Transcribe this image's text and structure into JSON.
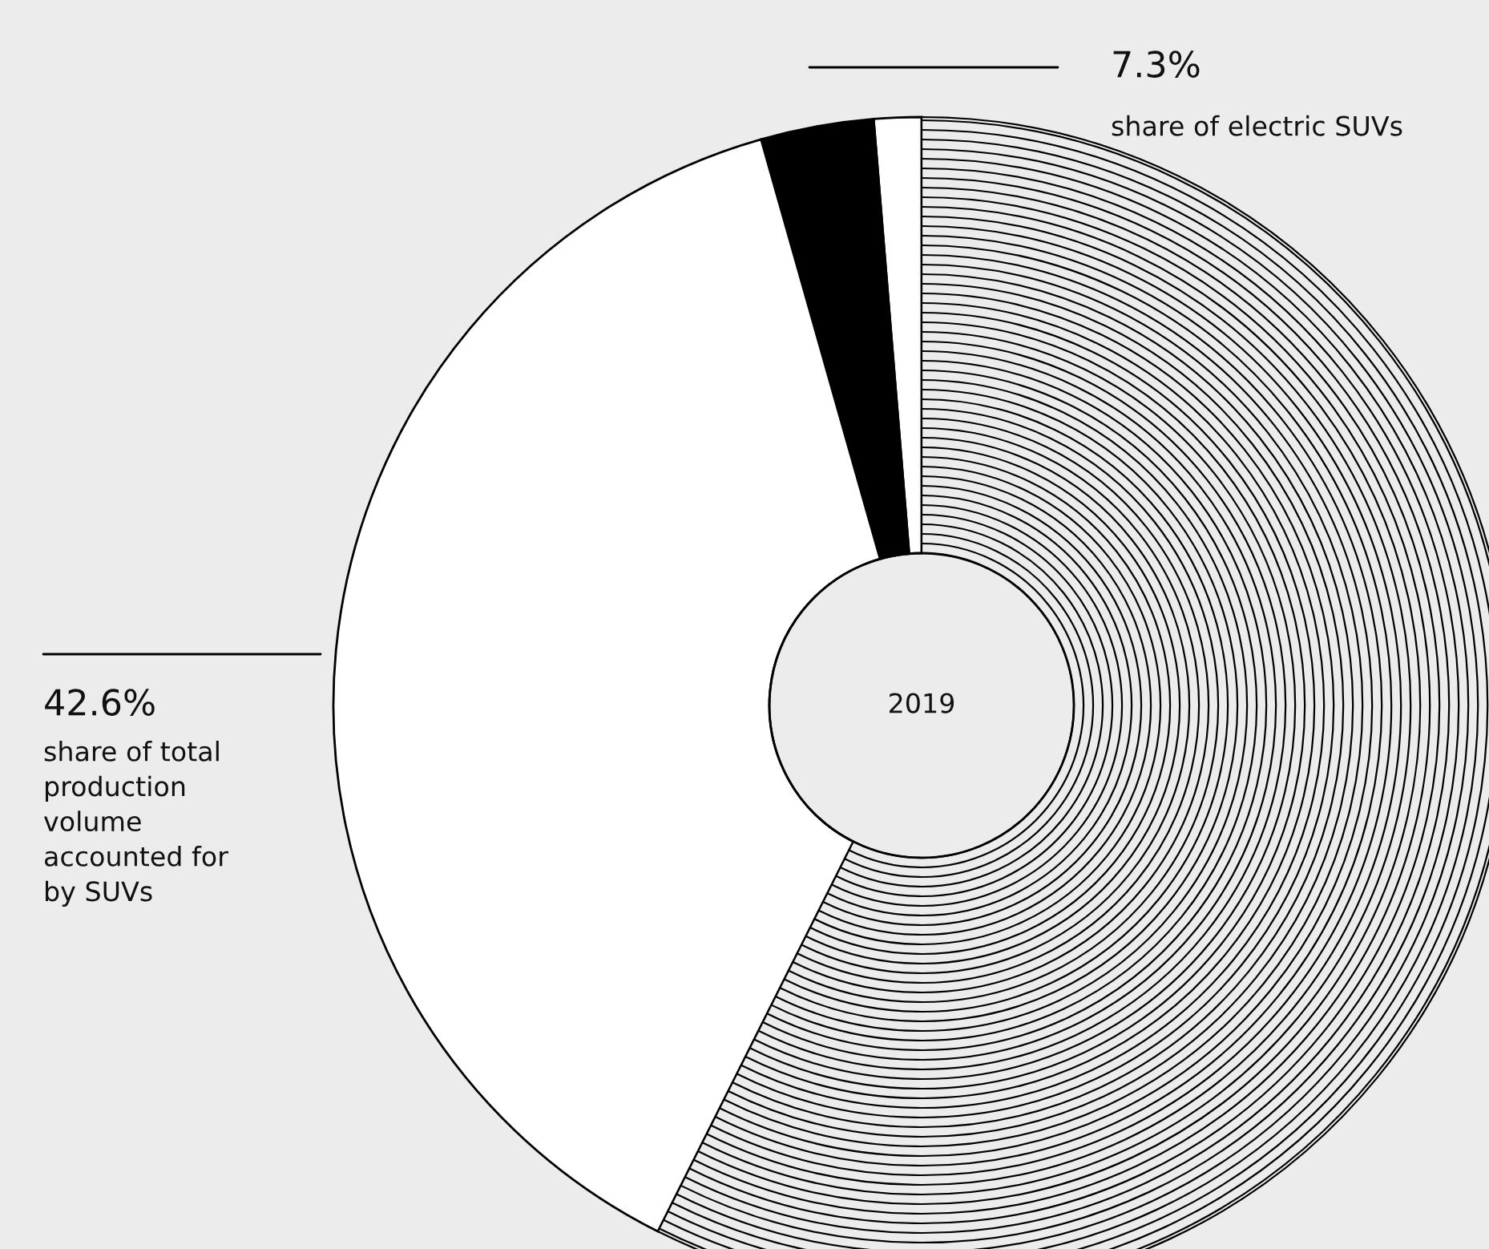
{
  "chart_data": {
    "type": "donut",
    "categories": [
      null,
      null,
      null,
      null
    ],
    "values": [
      1.3,
      3.1,
      38.2,
      57.4
    ],
    "colors": [
      "#ffffff",
      "#000000",
      "#ffffff",
      "#ececec"
    ],
    "annotations": [
      "7.3%",
      "share of electric SUVs",
      "42.6%",
      "share of total\nproduction\nvolume\naccounted for\nby SUVs",
      "2019"
    ]
  }
}
